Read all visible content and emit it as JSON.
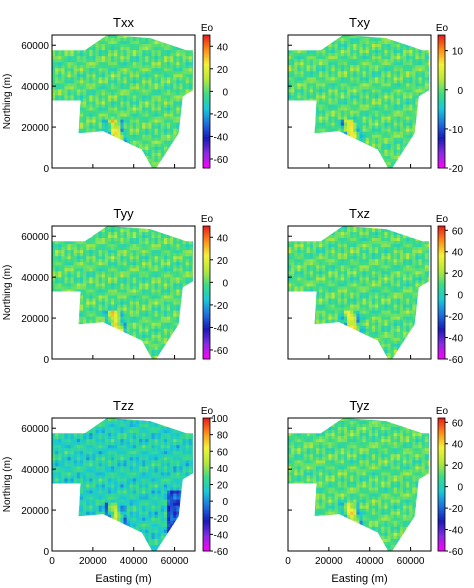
{
  "figure": {
    "panels": [
      {
        "title": "Txx",
        "show_ylabel": true,
        "show_xlabel": false,
        "cb_ticks": [
          40,
          20,
          0,
          -20,
          -40,
          -60
        ],
        "cb_range": [
          -68,
          50
        ]
      },
      {
        "title": "Txy",
        "show_ylabel": false,
        "show_xlabel": false,
        "cb_ticks": [
          10,
          0,
          -10,
          -20
        ],
        "cb_range": [
          -20,
          14
        ]
      },
      {
        "title": "Tyy",
        "show_ylabel": true,
        "show_xlabel": false,
        "cb_ticks": [
          40,
          20,
          0,
          -20,
          -40,
          -60
        ],
        "cb_range": [
          -68,
          50
        ]
      },
      {
        "title": "Txz",
        "show_ylabel": false,
        "show_xlabel": false,
        "cb_ticks": [
          60,
          40,
          20,
          0,
          -20,
          -40,
          -60
        ],
        "cb_range": [
          -60,
          64
        ]
      },
      {
        "title": "Tzz",
        "show_ylabel": true,
        "show_xlabel": true,
        "cb_ticks": [
          100,
          80,
          60,
          40,
          20,
          0,
          -20,
          -40,
          -60
        ],
        "cb_range": [
          -60,
          100
        ]
      },
      {
        "title": "Tyz",
        "show_ylabel": false,
        "show_xlabel": true,
        "cb_ticks": [
          60,
          40,
          20,
          0,
          -20,
          -40,
          -60
        ],
        "cb_range": [
          -60,
          64
        ]
      }
    ],
    "colorbar_label": "Eo",
    "ylabel": "Northing (m)",
    "xlabel": "Easting (m)",
    "y_ticks": [
      0,
      20000,
      40000,
      60000
    ],
    "x_ticks": [
      0,
      20000,
      40000,
      60000
    ],
    "colormap": [
      "#ff00ff",
      "#8a2be2",
      "#1a1ab8",
      "#1e6fe0",
      "#19c8d8",
      "#3ddc84",
      "#b8e83a",
      "#f2f23a",
      "#ff8c1a",
      "#e81a1a"
    ]
  },
  "chart_data": {
    "type": "heatmap",
    "x_range": [
      0,
      70000
    ],
    "y_range": [
      0,
      65000
    ],
    "panels": [
      "Txx",
      "Txy",
      "Tyy",
      "Txz",
      "Tzz",
      "Tyz"
    ],
    "axis_labels": {
      "x": "Easting (m)",
      "y": "Northing (m)",
      "colorbar": "Eo"
    }
  }
}
